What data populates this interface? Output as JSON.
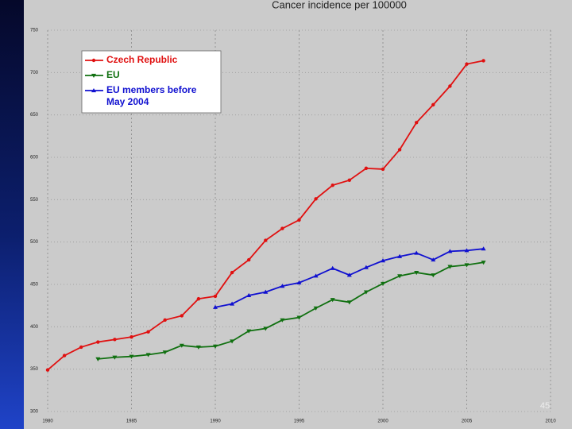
{
  "chart_data": {
    "type": "line",
    "title": "Cancer incidence per 100000",
    "x": [
      1980,
      1981,
      1982,
      1983,
      1984,
      1985,
      1986,
      1987,
      1988,
      1989,
      1990,
      1991,
      1992,
      1993,
      1994,
      1995,
      1996,
      1997,
      1998,
      1999,
      2000,
      2001,
      2002,
      2003,
      2004,
      2005,
      2006
    ],
    "series": [
      {
        "name": "Czech Republic",
        "color": "#e01010",
        "marker": "circle",
        "values": [
          349,
          366,
          376,
          382,
          385,
          388,
          394,
          408,
          413,
          433,
          436,
          464,
          479,
          502,
          516,
          526,
          551,
          567,
          573,
          587,
          586,
          609,
          641,
          662,
          684,
          710,
          714
        ]
      },
      {
        "name": "EU",
        "color": "#107010",
        "marker": "triangle-down",
        "values": [
          null,
          null,
          null,
          362,
          364,
          365,
          367,
          370,
          378,
          376,
          377,
          383,
          395,
          398,
          408,
          411,
          422,
          432,
          429,
          441,
          451,
          460,
          464,
          461,
          471,
          473,
          476
        ]
      },
      {
        "name": "EU members before May 2004",
        "color": "#1010d0",
        "marker": "triangle-up",
        "values": [
          null,
          null,
          null,
          null,
          null,
          null,
          null,
          null,
          null,
          null,
          423,
          427,
          437,
          441,
          448,
          452,
          460,
          469,
          461,
          470,
          478,
          483,
          487,
          479,
          489,
          490,
          492
        ]
      }
    ],
    "xlim": [
      1980,
      2010
    ],
    "xticks": [
      1980,
      1985,
      1990,
      1995,
      2000,
      2005,
      2010
    ],
    "ylim": [
      300,
      750
    ],
    "yticks": [
      300,
      350,
      400,
      450,
      500,
      550,
      600,
      650,
      700,
      750
    ],
    "grid": true,
    "legend": "upper left"
  },
  "slide": {
    "page_number": "45"
  }
}
